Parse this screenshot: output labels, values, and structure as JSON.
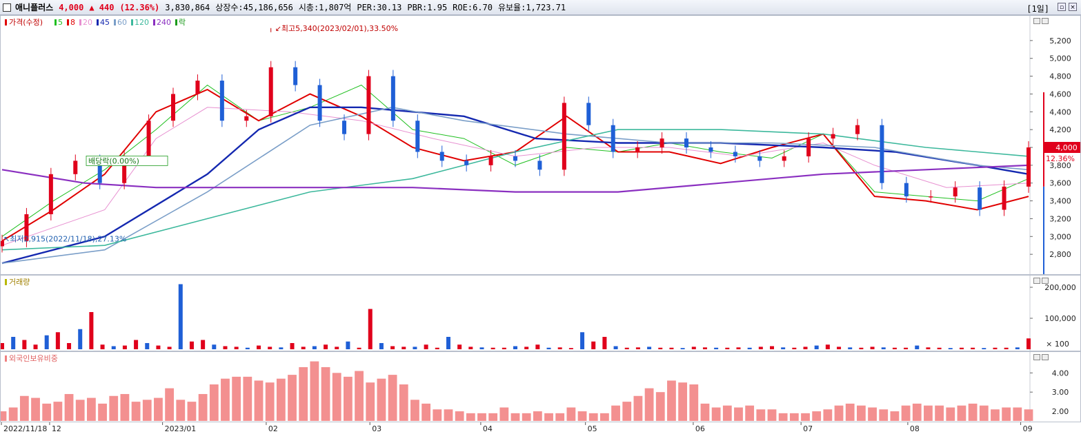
{
  "header": {
    "name": "애니플러스",
    "price": "4,000",
    "change": "▲ 440",
    "change_pct": "(12.36%)",
    "volume": "3,830,864",
    "listed_shares": "상장수:45,186,656",
    "market_cap": "시총:1,807억",
    "per": "PER:30.13",
    "pbr": "PBR:1.95",
    "roe": "ROE:6.70",
    "turnover": "유보율:1,723.71",
    "period": "[1일]"
  },
  "legend": {
    "price_label": "가격(수정)",
    "ma": [
      {
        "label": "5",
        "color": "#1fbf1f"
      },
      {
        "label": "8",
        "color": "#e00000"
      },
      {
        "label": "20",
        "color": "#e78fd0"
      },
      {
        "label": "45",
        "color": "#1428b0"
      },
      {
        "label": "60",
        "color": "#7a9ec8"
      },
      {
        "label": "120",
        "color": "#3cb89c"
      },
      {
        "label": "240",
        "color": "#8a2fc0"
      },
      {
        "label": "락",
        "color": "#1a9a1a"
      }
    ]
  },
  "annotations": {
    "high": "최고5,340(2023/02/01),33.50%",
    "low": "최저2,915(2022/11/18),27.13%",
    "rights": "배당락(0.00%)",
    "last_price": "4,000",
    "last_pct": "12.36%"
  },
  "volume_panel": {
    "title": "거래량",
    "ticks": [
      "200,000",
      "100,000"
    ],
    "unit": "× 100"
  },
  "foreign_panel": {
    "title": "외국인보유비중",
    "ticks": [
      "4.00",
      "3.00",
      "2.00"
    ]
  },
  "x_axis": {
    "labels": [
      "2022/11/18",
      "12",
      "2023/01",
      "02",
      "03",
      "04",
      "05",
      "06",
      "07",
      "08",
      "09"
    ]
  },
  "chart_data": [
    {
      "type": "candlestick",
      "title": "",
      "ylim": [
        2600,
        5400
      ],
      "y_ticks": [
        2800,
        3000,
        3200,
        3400,
        3600,
        3800,
        4000,
        4200,
        4400,
        4600,
        4800,
        5000,
        5200
      ],
      "x": [
        "2022/11/18",
        "2022/12",
        "2023/01",
        "2023/02",
        "2023/03",
        "2023/04",
        "2023/05",
        "2023/06",
        "2023/07",
        "2023/08",
        "2023/08/31"
      ],
      "close_series": [
        [
          "2022/11/18",
          2950
        ],
        [
          "2022/11/25",
          3250
        ],
        [
          "2022/12/01",
          3700
        ],
        [
          "2022/12/08",
          3850
        ],
        [
          "2022/12/15",
          3600
        ],
        [
          "2022/12/22",
          3900
        ],
        [
          "2022/12/29",
          4300
        ],
        [
          "2023/01/05",
          4600
        ],
        [
          "2023/01/12",
          4750
        ],
        [
          "2023/01/19",
          4300
        ],
        [
          "2023/01/26",
          4350
        ],
        [
          "2023/02/01",
          4900
        ],
        [
          "2023/02/08",
          4700
        ],
        [
          "2023/02/15",
          4300
        ],
        [
          "2023/02/22",
          4150
        ],
        [
          "2023/03/02",
          4800
        ],
        [
          "2023/03/09",
          4300
        ],
        [
          "2023/03/16",
          3950
        ],
        [
          "2023/03/23",
          3850
        ],
        [
          "2023/03/30",
          3800
        ],
        [
          "2023/04/06",
          3900
        ],
        [
          "2023/04/13",
          3850
        ],
        [
          "2023/04/20",
          3750
        ],
        [
          "2023/04/27",
          4500
        ],
        [
          "2023/05/04",
          4250
        ],
        [
          "2023/05/11",
          3950
        ],
        [
          "2023/05/18",
          4000
        ],
        [
          "2023/05/25",
          4100
        ],
        [
          "2023/06/01",
          4000
        ],
        [
          "2023/06/08",
          3950
        ],
        [
          "2023/06/15",
          3900
        ],
        [
          "2023/06/22",
          3850
        ],
        [
          "2023/06/29",
          3900
        ],
        [
          "2023/07/06",
          4100
        ],
        [
          "2023/07/13",
          4150
        ],
        [
          "2023/07/20",
          4250
        ],
        [
          "2023/07/27",
          3600
        ],
        [
          "2023/08/03",
          3450
        ],
        [
          "2023/08/10",
          3450
        ],
        [
          "2023/08/17",
          3550
        ],
        [
          "2023/08/24",
          3300
        ],
        [
          "2023/08/31",
          3560
        ],
        [
          "2023/09/01",
          4000
        ]
      ],
      "moving_averages": [
        {
          "name": "5",
          "values": [
            [
              0.0,
              3000
            ],
            [
              0.05,
              3400
            ],
            [
              0.1,
              3750
            ],
            [
              0.15,
              4200
            ],
            [
              0.2,
              4700
            ],
            [
              0.25,
              4300
            ],
            [
              0.3,
              4450
            ],
            [
              0.35,
              4700
            ],
            [
              0.4,
              4200
            ],
            [
              0.45,
              4100
            ],
            [
              0.5,
              3800
            ],
            [
              0.55,
              4000
            ],
            [
              0.6,
              3950
            ],
            [
              0.65,
              4050
            ],
            [
              0.7,
              3950
            ],
            [
              0.75,
              3880
            ],
            [
              0.8,
              4150
            ],
            [
              0.85,
              3500
            ],
            [
              0.9,
              3450
            ],
            [
              0.95,
              3400
            ],
            [
              1.0,
              3650
            ]
          ]
        },
        {
          "name": "8",
          "values": [
            [
              0.0,
              2950
            ],
            [
              0.05,
              3300
            ],
            [
              0.1,
              3700
            ],
            [
              0.15,
              4400
            ],
            [
              0.2,
              4650
            ],
            [
              0.25,
              4300
            ],
            [
              0.3,
              4600
            ],
            [
              0.35,
              4350
            ],
            [
              0.4,
              4000
            ],
            [
              0.45,
              3850
            ],
            [
              0.5,
              3950
            ],
            [
              0.55,
              4350
            ],
            [
              0.6,
              3950
            ],
            [
              0.65,
              3950
            ],
            [
              0.7,
              3820
            ],
            [
              0.75,
              4000
            ],
            [
              0.8,
              4150
            ],
            [
              0.85,
              3450
            ],
            [
              0.9,
              3400
            ],
            [
              0.95,
              3300
            ],
            [
              1.0,
              3450
            ]
          ]
        },
        {
          "name": "20",
          "values": [
            [
              0.0,
              2900
            ],
            [
              0.1,
              3300
            ],
            [
              0.15,
              4100
            ],
            [
              0.2,
              4450
            ],
            [
              0.28,
              4400
            ],
            [
              0.35,
              4300
            ],
            [
              0.42,
              4100
            ],
            [
              0.5,
              3900
            ],
            [
              0.58,
              4000
            ],
            [
              0.65,
              4000
            ],
            [
              0.72,
              3900
            ],
            [
              0.8,
              4050
            ],
            [
              0.85,
              3800
            ],
            [
              0.92,
              3550
            ],
            [
              1.0,
              3600
            ]
          ]
        },
        {
          "name": "45",
          "values": [
            [
              0.0,
              2700
            ],
            [
              0.1,
              3000
            ],
            [
              0.2,
              3700
            ],
            [
              0.25,
              4200
            ],
            [
              0.3,
              4450
            ],
            [
              0.35,
              4450
            ],
            [
              0.45,
              4350
            ],
            [
              0.52,
              4100
            ],
            [
              0.6,
              4050
            ],
            [
              0.7,
              4050
            ],
            [
              0.8,
              4000
            ],
            [
              0.87,
              3950
            ],
            [
              0.95,
              3800
            ],
            [
              1.0,
              3700
            ]
          ]
        },
        {
          "name": "60",
          "values": [
            [
              0.0,
              2700
            ],
            [
              0.1,
              2850
            ],
            [
              0.2,
              3500
            ],
            [
              0.3,
              4250
            ],
            [
              0.38,
              4450
            ],
            [
              0.45,
              4300
            ],
            [
              0.55,
              4150
            ],
            [
              0.65,
              4050
            ],
            [
              0.75,
              4050
            ],
            [
              0.85,
              4000
            ],
            [
              0.95,
              3800
            ],
            [
              1.0,
              3750
            ]
          ]
        },
        {
          "name": "120",
          "values": [
            [
              0.0,
              2850
            ],
            [
              0.1,
              2900
            ],
            [
              0.2,
              3200
            ],
            [
              0.3,
              3500
            ],
            [
              0.4,
              3650
            ],
            [
              0.5,
              3950
            ],
            [
              0.6,
              4200
            ],
            [
              0.7,
              4200
            ],
            [
              0.8,
              4150
            ],
            [
              0.9,
              4000
            ],
            [
              1.0,
              3900
            ]
          ]
        },
        {
          "name": "240",
          "values": [
            [
              0.0,
              3750
            ],
            [
              0.08,
              3600
            ],
            [
              0.15,
              3550
            ],
            [
              0.3,
              3550
            ],
            [
              0.4,
              3550
            ],
            [
              0.5,
              3500
            ],
            [
              0.6,
              3500
            ],
            [
              0.7,
              3600
            ],
            [
              0.8,
              3700
            ],
            [
              0.9,
              3750
            ],
            [
              1.0,
              3800
            ]
          ]
        }
      ]
    },
    {
      "type": "bar",
      "title": "거래량",
      "unit": "× 100",
      "ylim": [
        0,
        220000
      ],
      "y_ticks": [
        100000,
        200000
      ],
      "values": [
        20000,
        40000,
        30000,
        15000,
        45000,
        55000,
        20000,
        65000,
        120000,
        15000,
        10000,
        12000,
        30000,
        20000,
        12000,
        8000,
        210000,
        25000,
        30000,
        15000,
        10000,
        8000,
        5000,
        12000,
        8000,
        6000,
        20000,
        8000,
        10000,
        15000,
        8000,
        25000,
        5000,
        130000,
        20000,
        10000,
        8000,
        8000,
        15000,
        5000,
        40000,
        15000,
        8000,
        6000,
        5000,
        5000,
        10000,
        8000,
        15000,
        5000,
        6000,
        4000,
        55000,
        25000,
        40000,
        10000,
        5000,
        6000,
        8000,
        5000,
        5000,
        4000,
        8000,
        6000,
        5000,
        5000,
        6000,
        5000,
        8000,
        10000,
        6000,
        5000,
        8000,
        12000,
        15000,
        8000,
        6000,
        5000,
        8000,
        6000,
        5000,
        5000,
        12000,
        6000,
        5000,
        4000,
        5000,
        5000,
        4000,
        5000,
        5000,
        6000,
        35000
      ]
    },
    {
      "type": "bar",
      "title": "외국인보유비중",
      "ylim": [
        1.5,
        4.8
      ],
      "y_ticks": [
        2.0,
        3.0,
        4.0
      ],
      "values": [
        2.0,
        2.2,
        2.8,
        2.7,
        2.4,
        2.5,
        2.9,
        2.6,
        2.7,
        2.4,
        2.8,
        2.9,
        2.5,
        2.6,
        2.7,
        3.2,
        2.6,
        2.5,
        2.9,
        3.4,
        3.7,
        3.8,
        3.8,
        3.6,
        3.5,
        3.7,
        3.9,
        4.3,
        4.6,
        4.3,
        4.0,
        3.8,
        4.1,
        3.5,
        3.7,
        3.9,
        3.4,
        2.6,
        2.4,
        2.1,
        2.1,
        2.0,
        1.9,
        1.9,
        1.9,
        2.2,
        1.9,
        1.9,
        2.0,
        1.9,
        1.9,
        2.2,
        2.0,
        1.9,
        1.9,
        2.3,
        2.5,
        2.8,
        3.2,
        3.0,
        3.6,
        3.5,
        3.4,
        2.4,
        2.2,
        2.3,
        2.2,
        2.3,
        2.1,
        2.1,
        1.9,
        1.9,
        1.9,
        2.0,
        2.1,
        2.3,
        2.4,
        2.3,
        2.2,
        2.1,
        2.0,
        2.3,
        2.4,
        2.3,
        2.3,
        2.2,
        2.3,
        2.4,
        2.3,
        2.1,
        2.2,
        2.2,
        2.1
      ]
    }
  ]
}
